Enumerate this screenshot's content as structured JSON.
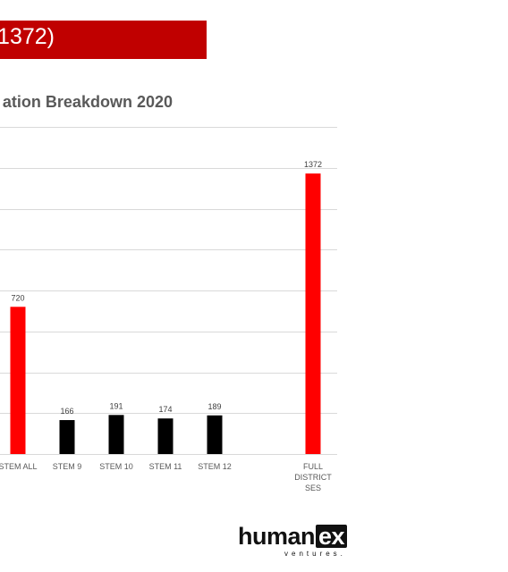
{
  "banner": {
    "text": "1372)",
    "color": "#c00000"
  },
  "logo": {
    "main": "human",
    "ex": "ex",
    "sub": "ventures."
  },
  "chart_data": {
    "type": "bar",
    "title": "ation Breakdown 2020",
    "categories": [
      "STEM ALL",
      "STEM 9",
      "STEM 10",
      "STEM 11",
      "STEM 12",
      "FULL DISTRICT SES"
    ],
    "category_lines": [
      [
        "STEM ALL"
      ],
      [
        "STEM 9"
      ],
      [
        "STEM 10"
      ],
      [
        "STEM 11"
      ],
      [
        "STEM 12"
      ],
      [
        "FULL",
        "DISTRICT",
        "SES"
      ]
    ],
    "values": [
      720,
      166,
      191,
      174,
      189,
      1372
    ],
    "data_labels": [
      "720",
      "166",
      "191",
      "174",
      "189",
      "1372"
    ],
    "colors": [
      "#ff0000",
      "#000000",
      "#000000",
      "#000000",
      "#000000",
      "#ff0000"
    ],
    "ylim": [
      0,
      1600
    ],
    "grid": true,
    "xlabel": "",
    "ylabel": ""
  }
}
